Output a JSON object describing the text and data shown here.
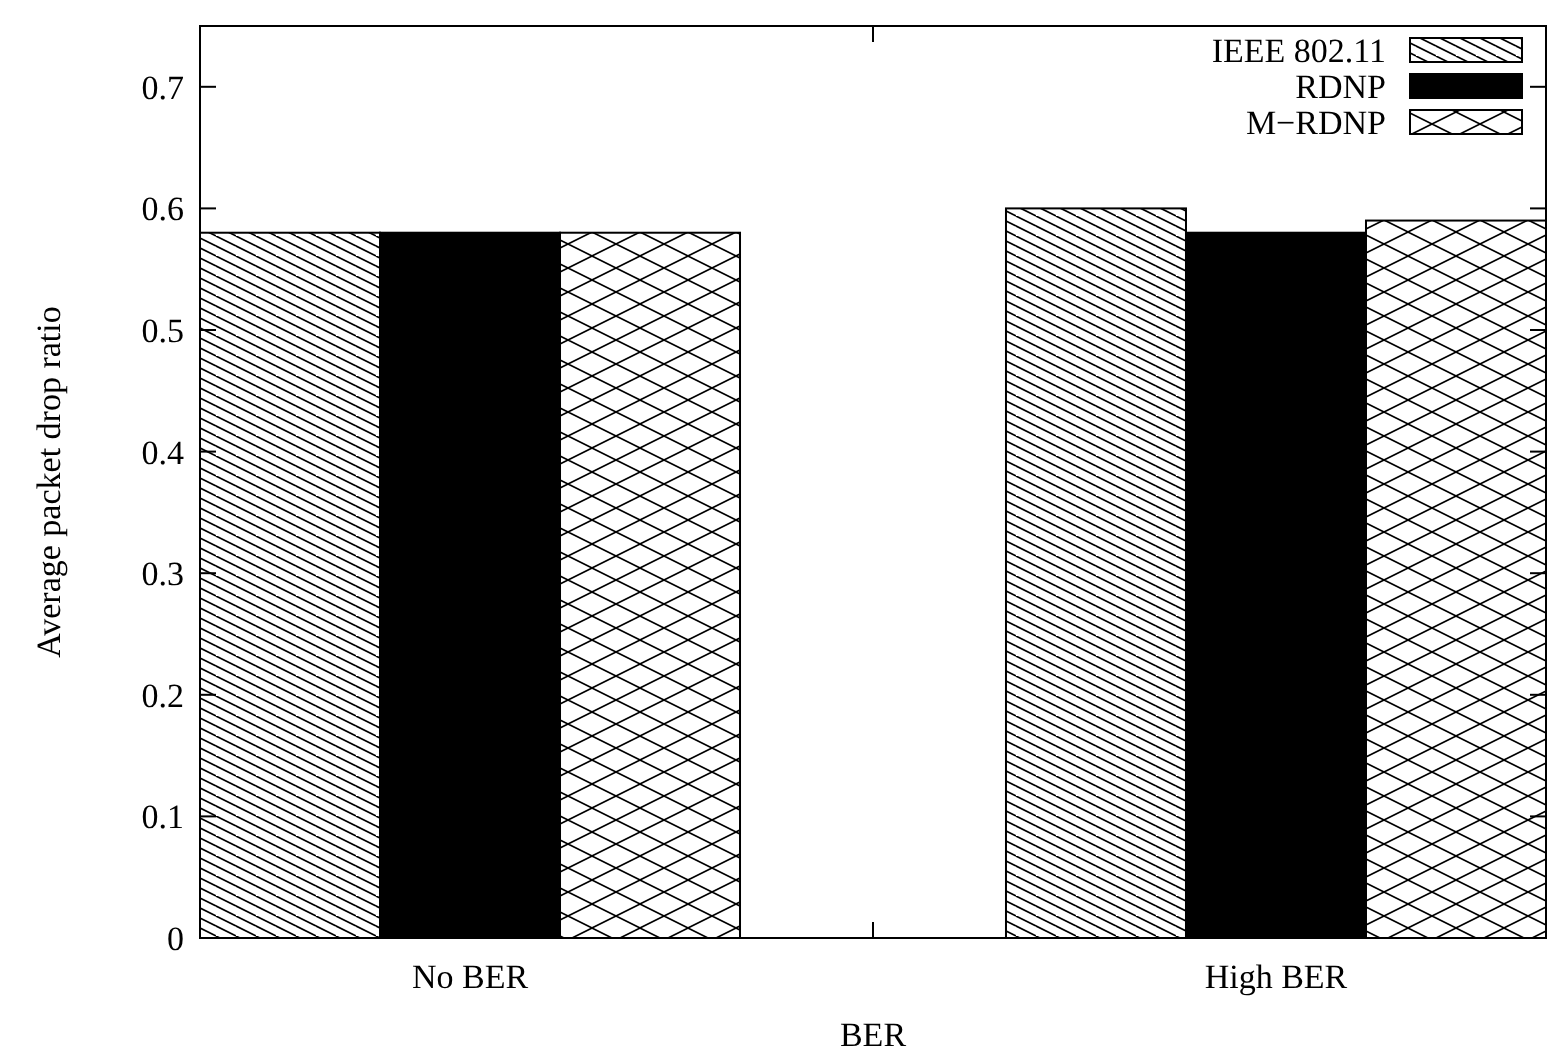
{
  "chart_data": {
    "type": "bar",
    "xlabel": "BER",
    "ylabel": "Average packet drop ratio",
    "categories": [
      "No BER",
      "High BER"
    ],
    "series": [
      {
        "name": "IEEE 802.11",
        "color": "#000000",
        "values": [
          0.58,
          0.6
        ]
      },
      {
        "name": "RDNP",
        "color": "#000000",
        "values": [
          0.58,
          0.58
        ]
      },
      {
        "name": "M−RDNP",
        "color": "#000000",
        "values": [
          0.58,
          0.59
        ]
      }
    ],
    "ylim": [
      0,
      0.75
    ],
    "yticks": [
      0,
      0.1,
      0.2,
      0.3,
      0.4,
      0.5,
      0.6,
      0.7
    ],
    "grid": false,
    "legend": "top right"
  }
}
